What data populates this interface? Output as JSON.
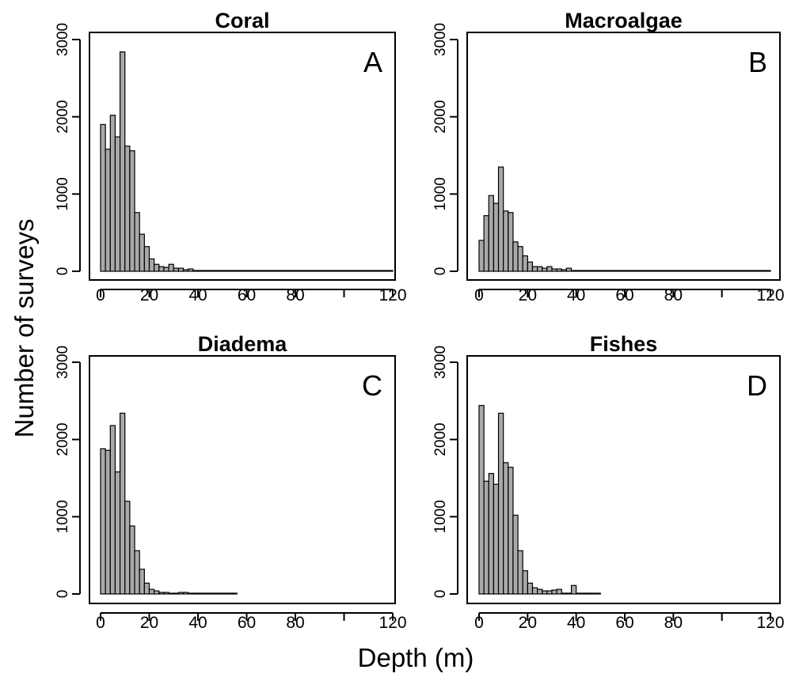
{
  "figure": {
    "xlabel": "Depth (m)",
    "ylabel": "Number of surveys"
  },
  "chart_data": [
    {
      "type": "bar",
      "title": "Coral",
      "letter": "A",
      "bin_width": 2,
      "x_start": 0,
      "values": [
        1900,
        1580,
        2020,
        1740,
        2840,
        1620,
        1560,
        760,
        480,
        320,
        160,
        90,
        60,
        50,
        90,
        40,
        40,
        20,
        30,
        10,
        10,
        10,
        10,
        10,
        10,
        10,
        10,
        10,
        10,
        10,
        10,
        10,
        10,
        10,
        10,
        10,
        10,
        10,
        10,
        10,
        10,
        10,
        10,
        10,
        10,
        10,
        10,
        10,
        10,
        10,
        10,
        10,
        10,
        10,
        10,
        10,
        10,
        10,
        10,
        10
      ],
      "xlim": [
        0,
        120
      ],
      "ylim": [
        0,
        3000
      ],
      "xticks": [
        0,
        20,
        40,
        60,
        80,
        120
      ],
      "xtick_marks": [
        0,
        20,
        40,
        60,
        80,
        100,
        120
      ],
      "yticks": [
        0,
        1000,
        2000,
        3000
      ],
      "xlabel": "Depth (m)",
      "ylabel": "Number of surveys"
    },
    {
      "type": "bar",
      "title": "Macroalgae",
      "letter": "B",
      "bin_width": 2,
      "x_start": 0,
      "values": [
        400,
        720,
        980,
        880,
        1350,
        780,
        760,
        380,
        320,
        200,
        120,
        60,
        60,
        40,
        60,
        30,
        30,
        20,
        40,
        10,
        10,
        10,
        10,
        10,
        10,
        10,
        10,
        10,
        10,
        10,
        10,
        10,
        10,
        10,
        10,
        10,
        10,
        10,
        10,
        10,
        10,
        10,
        10,
        10,
        10,
        10,
        10,
        10,
        10,
        10,
        10,
        10,
        10,
        10,
        10,
        10,
        10,
        10,
        10,
        10
      ],
      "xlim": [
        0,
        120
      ],
      "ylim": [
        0,
        3000
      ],
      "xticks": [
        0,
        20,
        40,
        60,
        80,
        120
      ],
      "xtick_marks": [
        0,
        20,
        40,
        60,
        80,
        100,
        120
      ],
      "yticks": [
        0,
        1000,
        2000,
        3000
      ],
      "xlabel": "Depth (m)",
      "ylabel": "Number of surveys"
    },
    {
      "type": "bar",
      "title": "Diadema",
      "letter": "C",
      "bin_width": 2,
      "x_start": 0,
      "values": [
        1880,
        1860,
        2180,
        1580,
        2340,
        1200,
        880,
        560,
        320,
        140,
        60,
        40,
        20,
        20,
        10,
        10,
        20,
        20,
        10,
        10,
        10,
        10,
        10,
        10,
        10,
        10,
        10,
        10
      ],
      "xlim": [
        0,
        120
      ],
      "ylim": [
        0,
        3000
      ],
      "xticks": [
        0,
        20,
        40,
        60,
        80,
        120
      ],
      "xtick_marks": [
        0,
        20,
        40,
        60,
        80,
        100,
        120
      ],
      "yticks": [
        0,
        1000,
        2000,
        3000
      ],
      "xlabel": "Depth (m)",
      "ylabel": "Number of surveys"
    },
    {
      "type": "bar",
      "title": "Fishes",
      "letter": "D",
      "bin_width": 2,
      "x_start": 0,
      "values": [
        2440,
        1460,
        1560,
        1420,
        2340,
        1700,
        1640,
        1020,
        560,
        300,
        140,
        80,
        60,
        40,
        40,
        50,
        60,
        10,
        10,
        110,
        10,
        10,
        10,
        10,
        10
      ],
      "xlim": [
        0,
        120
      ],
      "ylim": [
        0,
        3000
      ],
      "xticks": [
        0,
        20,
        40,
        60,
        80,
        120
      ],
      "xtick_marks": [
        0,
        20,
        40,
        60,
        80,
        100,
        120
      ],
      "yticks": [
        0,
        1000,
        2000,
        3000
      ],
      "xlabel": "Depth (m)",
      "ylabel": "Number of surveys"
    }
  ]
}
